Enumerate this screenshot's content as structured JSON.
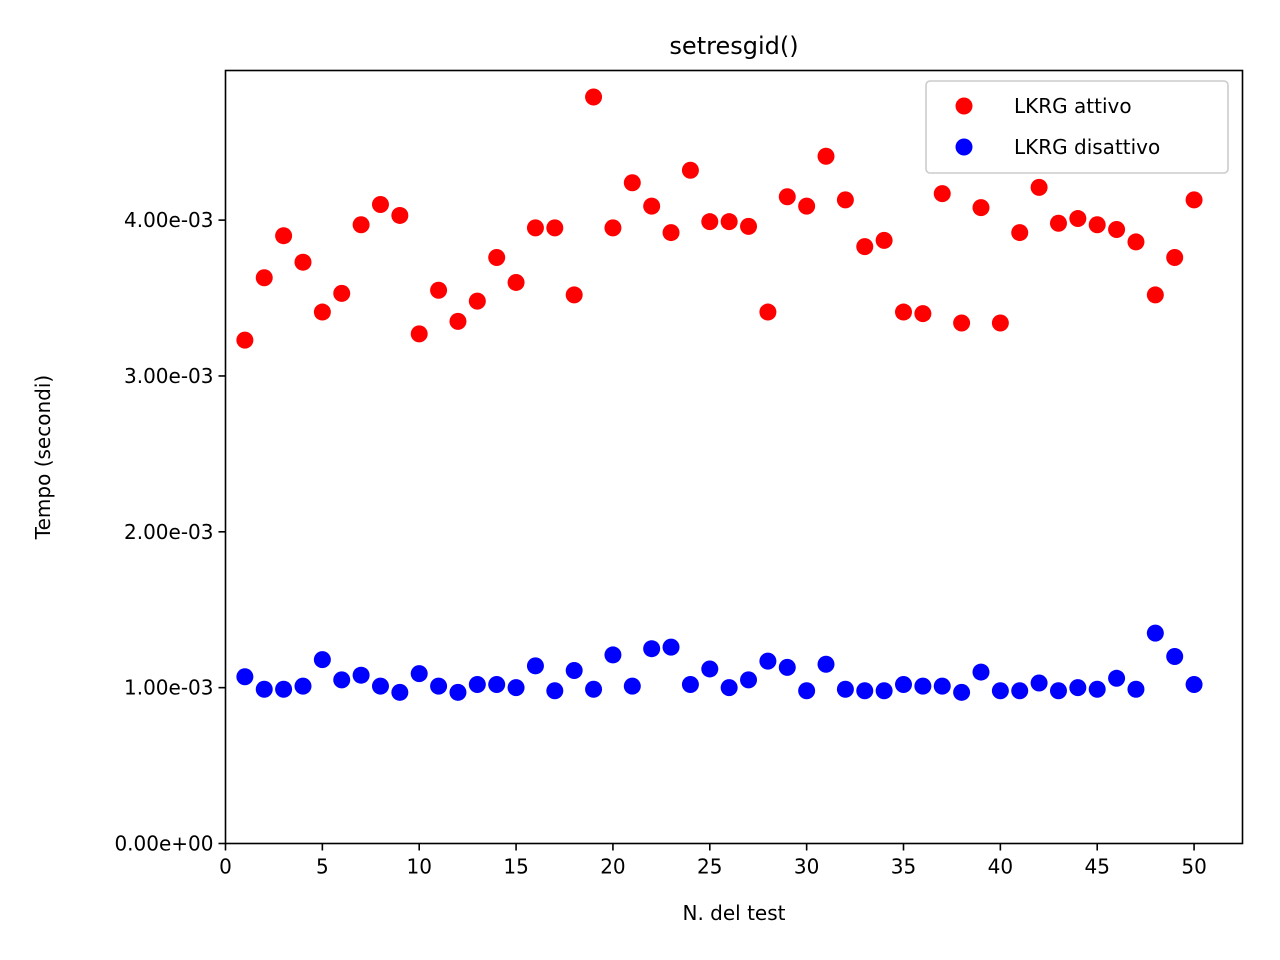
{
  "chart_data": {
    "type": "scatter",
    "title": "setresgid()",
    "xlabel": "N. del test",
    "ylabel": "Tempo (secondi)",
    "xlim": [
      0,
      52.5
    ],
    "ylim": [
      0,
      0.00496
    ],
    "x_ticks": [
      {
        "value": 0,
        "label": "0"
      },
      {
        "value": 5,
        "label": "5"
      },
      {
        "value": 10,
        "label": "10"
      },
      {
        "value": 15,
        "label": "15"
      },
      {
        "value": 20,
        "label": "20"
      },
      {
        "value": 25,
        "label": "25"
      },
      {
        "value": 30,
        "label": "30"
      },
      {
        "value": 35,
        "label": "35"
      },
      {
        "value": 40,
        "label": "40"
      },
      {
        "value": 45,
        "label": "45"
      },
      {
        "value": 50,
        "label": "50"
      }
    ],
    "y_ticks": [
      {
        "value": 0,
        "label": "0.00e+00"
      },
      {
        "value": 0.001,
        "label": "1.00e-03"
      },
      {
        "value": 0.002,
        "label": "2.00e-03"
      },
      {
        "value": 0.003,
        "label": "3.00e-03"
      },
      {
        "value": 0.004,
        "label": "4.00e-03"
      }
    ],
    "grid": false,
    "legend": "top-right",
    "x": [
      1,
      2,
      3,
      4,
      5,
      6,
      7,
      8,
      9,
      10,
      11,
      12,
      13,
      14,
      15,
      16,
      17,
      18,
      19,
      20,
      21,
      22,
      23,
      24,
      25,
      26,
      27,
      28,
      29,
      30,
      31,
      32,
      33,
      34,
      35,
      36,
      37,
      38,
      39,
      40,
      41,
      42,
      43,
      44,
      45,
      46,
      47,
      48,
      49,
      50
    ],
    "series": [
      {
        "name": "LKRG attivo",
        "color": "#ff0000",
        "values": [
          0.00323,
          0.00363,
          0.0039,
          0.00373,
          0.00341,
          0.00353,
          0.00397,
          0.0041,
          0.00403,
          0.00327,
          0.00355,
          0.00335,
          0.00348,
          0.00376,
          0.0036,
          0.00395,
          0.00395,
          0.00352,
          0.00479,
          0.00395,
          0.00424,
          0.00409,
          0.00392,
          0.00432,
          0.00399,
          0.00399,
          0.00396,
          0.00341,
          0.00415,
          0.00409,
          0.00441,
          0.00413,
          0.00383,
          0.00387,
          0.00341,
          0.0034,
          0.00417,
          0.00334,
          0.00408,
          0.00334,
          0.00392,
          0.00421,
          0.00398,
          0.00401,
          0.00397,
          0.00394,
          0.00386,
          0.00352,
          0.00376,
          0.00413
        ]
      },
      {
        "name": "LKRG disattivo",
        "color": "#0000ff",
        "values": [
          0.00107,
          0.00099,
          0.00099,
          0.00101,
          0.00118,
          0.00105,
          0.00108,
          0.00101,
          0.00097,
          0.00109,
          0.00101,
          0.00097,
          0.00102,
          0.00102,
          0.001,
          0.00114,
          0.00098,
          0.00111,
          0.00099,
          0.00121,
          0.00101,
          0.00125,
          0.00126,
          0.00102,
          0.00112,
          0.001,
          0.00105,
          0.00117,
          0.00113,
          0.00098,
          0.00115,
          0.00099,
          0.00098,
          0.00098,
          0.00102,
          0.00101,
          0.00101,
          0.00097,
          0.0011,
          0.00098,
          0.00098,
          0.00103,
          0.00098,
          0.001,
          0.00099,
          0.00106,
          0.00099,
          0.00135,
          0.0012,
          0.00102
        ]
      }
    ]
  }
}
